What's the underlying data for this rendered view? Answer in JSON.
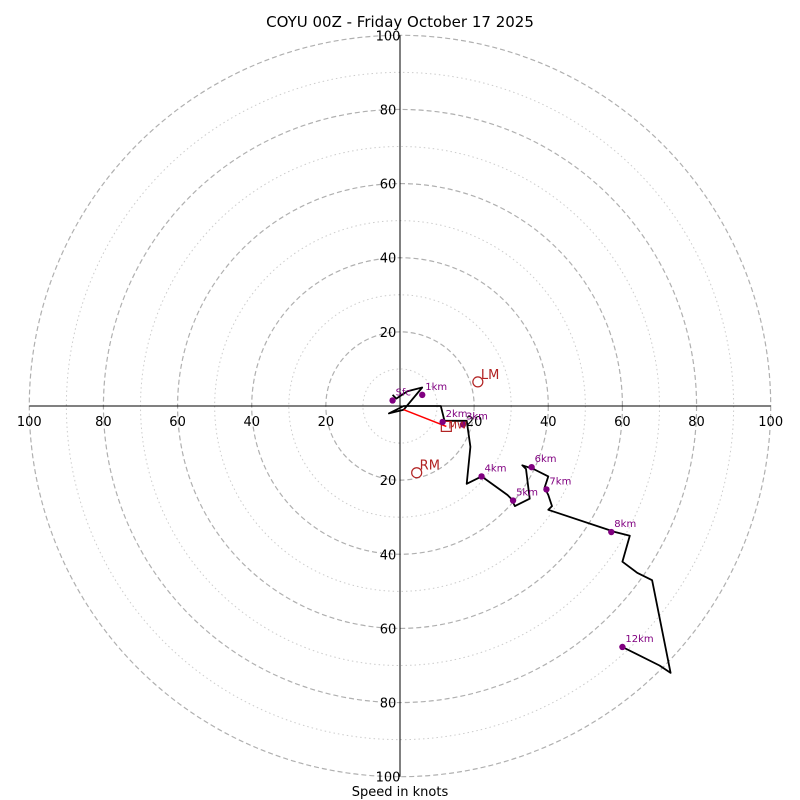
{
  "chart_data": {
    "type": "hodograph",
    "title": "COYU 00Z - Friday October 17 2025",
    "xlabel": "Speed in knots",
    "axis_range": [
      -100,
      100
    ],
    "major_rings": [
      20,
      40,
      60,
      80,
      100
    ],
    "minor_rings": [
      10,
      30,
      50,
      70,
      90
    ],
    "tick_values": [
      20,
      40,
      60,
      80,
      100
    ],
    "hodograph_trace": {
      "color": "#000000",
      "points": [
        [
          -2,
          3
        ],
        [
          -1,
          2
        ],
        [
          2,
          4
        ],
        [
          6,
          5
        ],
        [
          1,
          -1
        ],
        [
          -3,
          -2
        ],
        [
          1,
          0
        ],
        [
          11,
          0
        ],
        [
          12,
          -4
        ],
        [
          18,
          -4
        ],
        [
          19,
          -11
        ],
        [
          18,
          -21
        ],
        [
          22,
          -19
        ],
        [
          29,
          -24
        ],
        [
          30,
          -25
        ],
        [
          31,
          -27
        ],
        [
          35,
          -25
        ],
        [
          34,
          -17
        ],
        [
          33,
          -16
        ],
        [
          36,
          -17
        ],
        [
          40,
          -19
        ],
        [
          39,
          -22
        ],
        [
          40,
          -24
        ],
        [
          41,
          -27
        ],
        [
          40,
          -28
        ],
        [
          58,
          -34
        ],
        [
          62,
          -35
        ],
        [
          60,
          -42
        ],
        [
          64,
          -45
        ],
        [
          68,
          -47
        ],
        [
          73,
          -72
        ],
        [
          70,
          -70
        ],
        [
          60,
          -65
        ]
      ]
    },
    "height_markers": [
      {
        "label": "Sfc",
        "x": -2,
        "y": 1.5
      },
      {
        "label": "1km",
        "x": 6,
        "y": 3
      },
      {
        "label": "2km",
        "x": 11.5,
        "y": -4.3
      },
      {
        "label": "3km",
        "x": 17,
        "y": -5
      },
      {
        "label": "4km",
        "x": 22,
        "y": -19
      },
      {
        "label": "5km",
        "x": 30.5,
        "y": -25.5
      },
      {
        "label": "6km",
        "x": 35.5,
        "y": -16.5
      },
      {
        "label": "7km",
        "x": 39.5,
        "y": -22.5
      },
      {
        "label": "8km",
        "x": 57,
        "y": -34
      },
      {
        "label": "12km",
        "x": 60,
        "y": -65
      }
    ],
    "bunkers_motion": [
      {
        "label": "LM",
        "x": 21,
        "y": 6.5
      },
      {
        "label": "RM",
        "x": 4.5,
        "y": -18
      }
    ],
    "mean_wind": {
      "label": "MW",
      "x": 12.5,
      "y": -5.5,
      "color": "#ff0000"
    },
    "colors": {
      "height_marker": "#800080",
      "storm_motion": "#b22222",
      "shear_vector": "#ff0000",
      "major_ring": "#b0b0b0",
      "minor_ring": "#cccccc"
    }
  }
}
